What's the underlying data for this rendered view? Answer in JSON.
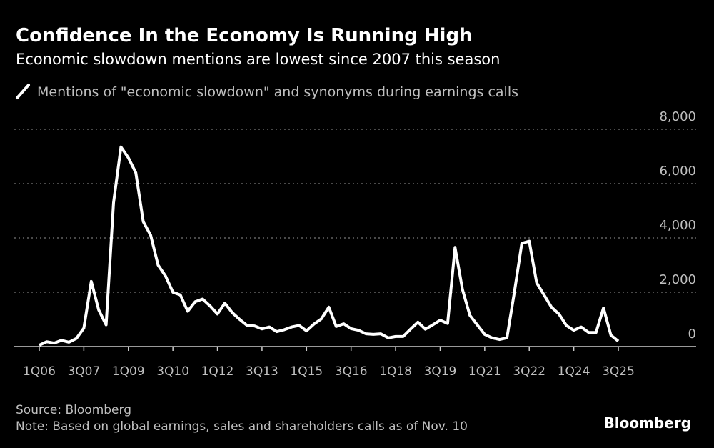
{
  "chart_data": {
    "type": "line",
    "title": "Confidence In the Economy Is Running High",
    "subtitle": "Economic slowdown mentions are lowest since 2007 this season",
    "source": "Source: Bloomberg",
    "note": "Note: Based on global earnings, sales and shareholders calls as of Nov. 10",
    "logo": "Bloomberg",
    "categories": [
      "1Q06",
      null,
      null,
      null,
      null,
      null,
      "3Q07",
      null,
      null,
      null,
      null,
      null,
      "1Q09",
      null,
      null,
      null,
      null,
      null,
      "3Q10",
      null,
      null,
      null,
      null,
      null,
      "1Q12",
      null,
      null,
      null,
      null,
      null,
      "3Q13",
      null,
      null,
      null,
      null,
      null,
      "1Q15",
      null,
      null,
      null,
      null,
      null,
      "3Q16",
      null,
      null,
      null,
      null,
      null,
      "1Q18",
      null,
      null,
      null,
      null,
      null,
      "3Q19",
      null,
      null,
      null,
      null,
      null,
      "1Q21",
      null,
      null,
      null,
      null,
      null,
      "3Q22",
      null,
      null,
      null,
      null,
      null,
      "1Q24",
      null,
      null,
      null,
      null,
      null,
      "3Q25"
    ],
    "series": [
      {
        "name": "Mentions of \"economic slowdown\" and synonyms during earnings calls",
        "color": "#ffffff",
        "values": [
          50,
          180,
          130,
          230,
          160,
          300,
          680,
          2400,
          1350,
          800,
          5300,
          7350,
          6950,
          6400,
          4600,
          4100,
          3000,
          2600,
          2000,
          1900,
          1300,
          1650,
          1750,
          1500,
          1200,
          1600,
          1250,
          1000,
          780,
          760,
          650,
          720,
          550,
          620,
          720,
          780,
          580,
          830,
          1020,
          1450,
          740,
          840,
          660,
          600,
          470,
          450,
          470,
          320,
          370,
          370,
          640,
          900,
          640,
          800,
          970,
          850,
          3650,
          2100,
          1150,
          800,
          450,
          320,
          260,
          320,
          2000,
          3800,
          3880,
          2350,
          1900,
          1450,
          1200,
          780,
          600,
          720,
          520,
          520,
          1420,
          420,
          200
        ]
      }
    ],
    "ylim": [
      0,
      8000
    ],
    "yticks": [
      0,
      {
        "value": 2000,
        "label": "2,000"
      },
      {
        "value": 4000,
        "label": "4,000"
      },
      {
        "value": 6000,
        "label": "6,000"
      },
      {
        "value": 8000,
        "label": "8,000"
      }
    ],
    "grid": true
  }
}
